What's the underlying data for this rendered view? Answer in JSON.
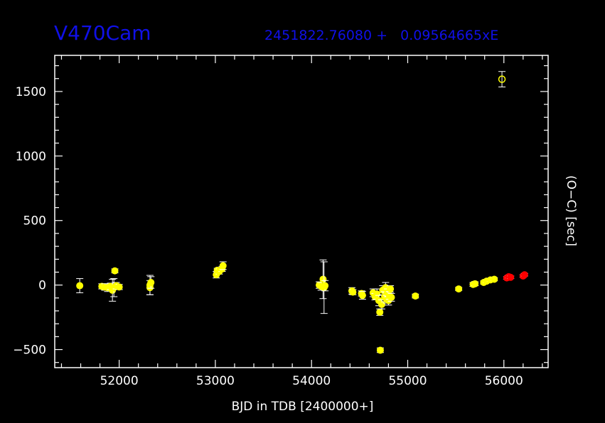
{
  "chart_data": {
    "type": "scatter",
    "title": "V470Cam",
    "subtitle": "2451822.76080 +   0.09564665xE",
    "xlabel": "BJD in TDB [2400000+]",
    "ylabel": "(O−C) [sec]",
    "xlim": [
      51330,
      56460
    ],
    "ylim": [
      -640,
      1780
    ],
    "xticks": [
      52000,
      53000,
      54000,
      55000,
      56000
    ],
    "yticks": [
      -500,
      0,
      500,
      1000,
      1500
    ],
    "grid": false,
    "colors": {
      "background": "#000000",
      "axes": "#ffffff",
      "title": "#1010e8",
      "series_yellow": "#ffff00",
      "series_red": "#ff0000"
    },
    "series": [
      {
        "color": "#ffff00",
        "points": [
          {
            "x": 51590,
            "y": -5,
            "err": 55
          },
          {
            "x": 51820,
            "y": -10,
            "err": 20
          },
          {
            "x": 51850,
            "y": -15,
            "err": 25
          },
          {
            "x": 51880,
            "y": -20,
            "err": 30
          },
          {
            "x": 51910,
            "y": -10,
            "err": 25
          },
          {
            "x": 51930,
            "y": -40,
            "err": 85
          },
          {
            "x": 51945,
            "y": -20,
            "err": 70
          },
          {
            "x": 51955,
            "y": 110,
            "err": 15
          },
          {
            "x": 51970,
            "y": -5,
            "err": 25
          },
          {
            "x": 52000,
            "y": -15,
            "err": 20
          },
          {
            "x": 52320,
            "y": 0,
            "err": 75
          },
          {
            "x": 52320,
            "y": -20,
            "err": 55
          },
          {
            "x": 52330,
            "y": 20,
            "err": 45
          },
          {
            "x": 53010,
            "y": 80,
            "err": 25
          },
          {
            "x": 53020,
            "y": 115,
            "err": 15
          },
          {
            "x": 53040,
            "y": 105,
            "err": 20
          },
          {
            "x": 53070,
            "y": 125,
            "err": 20
          },
          {
            "x": 53080,
            "y": 150,
            "err": 30
          },
          {
            "x": 54080,
            "y": 0,
            "err": 25
          },
          {
            "x": 54100,
            "y": -10,
            "err": 30
          },
          {
            "x": 54120,
            "y": 45,
            "err": 150
          },
          {
            "x": 54130,
            "y": -20,
            "err": 200
          },
          {
            "x": 54140,
            "y": -5,
            "err": 40
          },
          {
            "x": 54420,
            "y": -45,
            "err": 25
          },
          {
            "x": 54430,
            "y": -55,
            "err": 20
          },
          {
            "x": 54520,
            "y": -65,
            "err": 20
          },
          {
            "x": 54530,
            "y": -80,
            "err": 30
          },
          {
            "x": 54640,
            "y": -60,
            "err": 30
          },
          {
            "x": 54660,
            "y": -90,
            "err": 25
          },
          {
            "x": 54680,
            "y": -70,
            "err": 40
          },
          {
            "x": 54700,
            "y": -120,
            "err": 40
          },
          {
            "x": 54710,
            "y": -210,
            "err": 25
          },
          {
            "x": 54715,
            "y": -505,
            "err": 18
          },
          {
            "x": 54730,
            "y": -150,
            "err": 35
          },
          {
            "x": 54740,
            "y": -40,
            "err": 35
          },
          {
            "x": 54760,
            "y": -90,
            "err": 40
          },
          {
            "x": 54770,
            "y": -20,
            "err": 40
          },
          {
            "x": 54780,
            "y": -110,
            "err": 30
          },
          {
            "x": 54790,
            "y": -60,
            "err": 30
          },
          {
            "x": 54800,
            "y": -120,
            "err": 35
          },
          {
            "x": 54810,
            "y": -80,
            "err": 30
          },
          {
            "x": 54820,
            "y": -30,
            "err": 25
          },
          {
            "x": 54830,
            "y": -95,
            "err": 30
          },
          {
            "x": 55080,
            "y": -85,
            "err": 15
          },
          {
            "x": 55530,
            "y": -30,
            "err": 12
          },
          {
            "x": 55680,
            "y": 5,
            "err": 15
          },
          {
            "x": 55700,
            "y": 10,
            "err": 15
          },
          {
            "x": 55790,
            "y": 20,
            "err": 12
          },
          {
            "x": 55820,
            "y": 30,
            "err": 12
          },
          {
            "x": 55860,
            "y": 40,
            "err": 12
          },
          {
            "x": 55900,
            "y": 45,
            "err": 12
          },
          {
            "x": 55980,
            "y": 1595,
            "err": 60,
            "open": true
          }
        ]
      },
      {
        "color": "#ff0000",
        "points": [
          {
            "x": 56030,
            "y": 55,
            "err": 10
          },
          {
            "x": 56050,
            "y": 65,
            "err": 10
          },
          {
            "x": 56070,
            "y": 60,
            "err": 10
          },
          {
            "x": 56200,
            "y": 70,
            "err": 10
          },
          {
            "x": 56215,
            "y": 80,
            "err": 10
          }
        ]
      }
    ]
  }
}
